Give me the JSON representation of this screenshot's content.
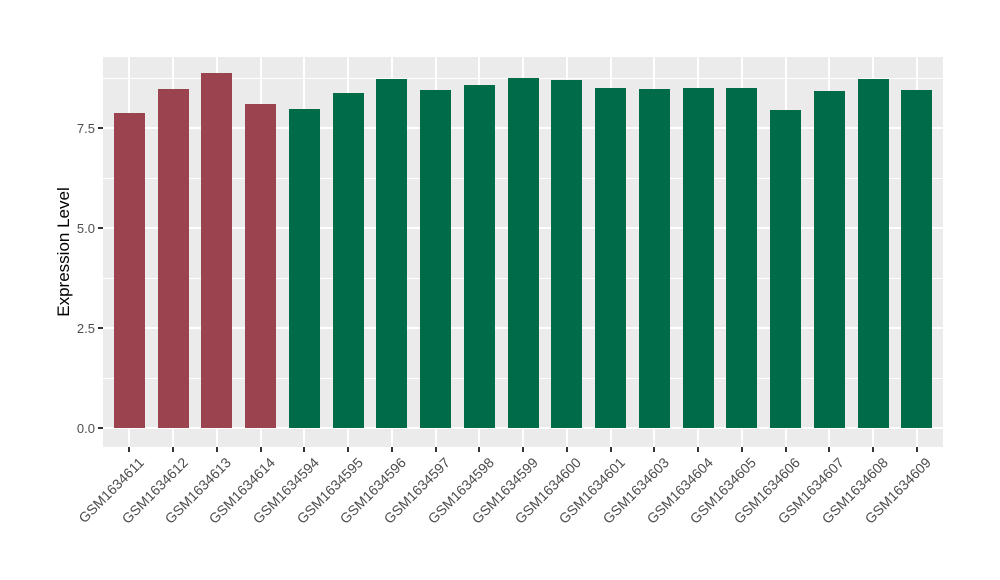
{
  "chart_data": {
    "type": "bar",
    "title": "",
    "xlabel": "",
    "ylabel": "Expression Level",
    "ylim": [
      -0.475,
      9.275
    ],
    "yticks": [
      0.0,
      2.5,
      5.0,
      7.5
    ],
    "ytick_labels": [
      "0.0",
      "2.5",
      "5.0",
      "7.5"
    ],
    "minor_yticks": [
      1.25,
      3.75,
      6.25,
      8.75
    ],
    "grid": true,
    "legend_position": "none",
    "categories": [
      "GSM1634611",
      "GSM1634612",
      "GSM1634613",
      "GSM1634614",
      "GSM1634594",
      "GSM1634595",
      "GSM1634596",
      "GSM1634597",
      "GSM1634598",
      "GSM1634599",
      "GSM1634600",
      "GSM1634601",
      "GSM1634603",
      "GSM1634604",
      "GSM1634605",
      "GSM1634606",
      "GSM1634607",
      "GSM1634608",
      "GSM1634609"
    ],
    "values": [
      7.88,
      8.47,
      8.87,
      8.09,
      7.97,
      8.38,
      8.72,
      8.45,
      8.58,
      8.74,
      8.7,
      8.5,
      8.47,
      8.49,
      8.49,
      7.94,
      8.43,
      8.72,
      8.45
    ],
    "bar_groups": [
      "group1",
      "group1",
      "group1",
      "group1",
      "group2",
      "group2",
      "group2",
      "group2",
      "group2",
      "group2",
      "group2",
      "group2",
      "group2",
      "group2",
      "group2",
      "group2",
      "group2",
      "group2",
      "group2"
    ],
    "group_colors": {
      "group1": "#9B4450",
      "group2": "#006B48"
    }
  },
  "style": {
    "panel_background": "#EBEBEB",
    "grid_color": "#FFFFFF",
    "axis_text_color": "#4D4D4D",
    "axis_title_color": "#000000",
    "tick_mark_color": "#333333",
    "figure_background": "#FFFFFF"
  }
}
